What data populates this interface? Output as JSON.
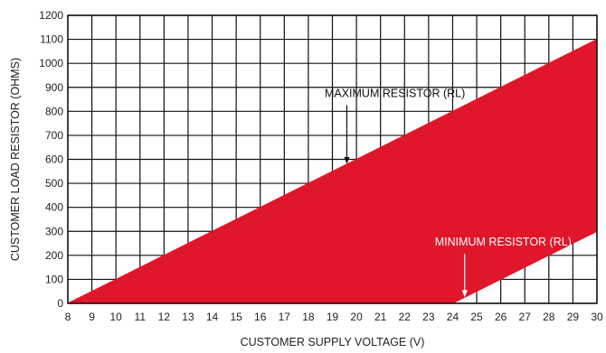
{
  "chart_data": {
    "type": "area",
    "title": "",
    "xlabel": "CUSTOMER SUPPLY VOLTAGE (V)",
    "ylabel": "CUSTOMER LOAD RESISTOR (OHMS)",
    "xlim": [
      8,
      30
    ],
    "ylim": [
      0,
      1200
    ],
    "x_ticks": [
      8,
      9,
      10,
      11,
      12,
      13,
      14,
      15,
      16,
      17,
      18,
      19,
      20,
      21,
      22,
      23,
      24,
      25,
      26,
      27,
      28,
      29,
      30
    ],
    "y_ticks": [
      0,
      100,
      200,
      300,
      400,
      500,
      600,
      700,
      800,
      900,
      1000,
      1100,
      1200
    ],
    "grid": true,
    "fill_color": "#e0162b",
    "series": [
      {
        "name": "MAXIMUM RESISTOR (RL)",
        "x": [
          8,
          30
        ],
        "y": [
          0,
          1100
        ]
      },
      {
        "name": "MINIMUM RESISTOR (RL)",
        "x": [
          24,
          30
        ],
        "y": [
          0,
          300
        ]
      }
    ],
    "annotations": [
      {
        "text": "MAXIMUM RESISTOR (RL)",
        "color": "#111111",
        "arrow_to": {
          "x": 19.6,
          "y": 580
        },
        "label_pos": {
          "x": 21.6,
          "y": 860
        }
      },
      {
        "text": "MINIMUM RESISTOR (RL)",
        "color": "#ffffff",
        "arrow_to": {
          "x": 24.5,
          "y": 25
        },
        "label_pos": {
          "x": 26.1,
          "y": 240
        }
      }
    ]
  }
}
